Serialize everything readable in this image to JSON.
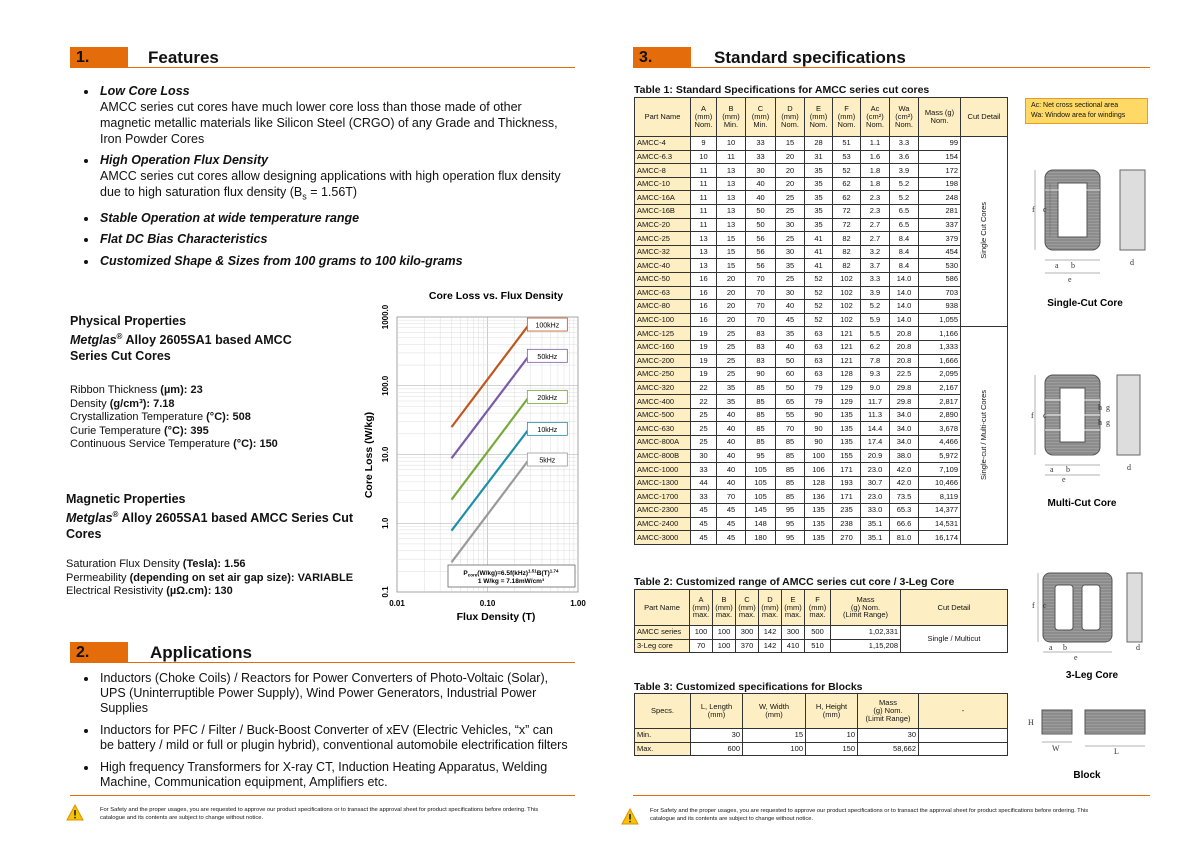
{
  "features": {
    "number": "1.",
    "title": "Features",
    "items": [
      {
        "title": "Low Core Loss",
        "text": "AMCC series cut cores have much lower core loss than those made of other magnetic metallic materials like Silicon Steel (CRGO) of any Grade and Thickness, Iron Powder Cores"
      },
      {
        "title": "High Operation Flux Density",
        "text": "AMCC series cut cores allow designing applications with high operation flux density due to high saturation flux density (B",
        "sub": "s",
        "tail": " = 1.56T)"
      },
      {
        "title": "Stable Operation at wide temperature range"
      },
      {
        "title": "Flat DC Bias Characteristics"
      },
      {
        "title": "Customized Shape & Sizes from 100 grams to 100 kilo-grams"
      }
    ]
  },
  "physical": {
    "title": "Physical Properties",
    "brand": "Metglas",
    "reg": "®",
    "subtitle": " Alloy 2605SA1 based AMCC Series Cut Cores",
    "properties": [
      {
        "name": "Ribbon Thickness ",
        "value": "(µm): 23"
      },
      {
        "name": "Density ",
        "value": "(g/cm³): 7.18"
      },
      {
        "name": "Crystallization Temperature ",
        "value": "(°C): 508"
      },
      {
        "name": "Curie Temperature ",
        "value": "(°C): 395"
      },
      {
        "name": "Continuous Service Temperature ",
        "value": "(°C): 150"
      }
    ]
  },
  "magnetic": {
    "title": "Magnetic Properties",
    "brand": "Metglas",
    "reg": "®",
    "subtitle": " Alloy 2605SA1 based AMCC Series Cut Cores",
    "properties": [
      {
        "name": "Saturation Flux Density ",
        "value": "(Tesla): 1.56"
      },
      {
        "name": "Permeability ",
        "value": "(depending on set air gap size): VARIABLE"
      },
      {
        "name": "Electrical Resistivity ",
        "value": "(µΩ.cm): 130"
      }
    ]
  },
  "chart_data": {
    "type": "line",
    "title": "Core Loss vs. Flux Density",
    "xlabel": "Flux Density (T)",
    "ylabel": "Core Loss (W/kg)",
    "xscale": "log",
    "yscale": "log",
    "grid": true,
    "xlim": [
      0.01,
      1
    ],
    "xticks": [
      0.01,
      {
        "value": 0.1,
        "label": "0.10"
      },
      {
        "value": 1,
        "label": "1.00"
      }
    ],
    "ylim": [
      0.1,
      1000
    ],
    "yticks": [
      0.1,
      {
        "value": 1,
        "label": "1.0"
      },
      {
        "value": 10,
        "label": "10.0"
      },
      {
        "value": 100,
        "label": "100.0"
      },
      {
        "value": 1000,
        "label": "1000.0"
      }
    ],
    "x": [
      0.04,
      0.29
    ],
    "series": [
      {
        "name": "100kHz",
        "color": "#c0561e",
        "values": [
          25,
          790
        ]
      },
      {
        "name": "50kHz",
        "color": "#7d5ba6",
        "values": [
          8.8,
          277
        ]
      },
      {
        "name": "20kHz",
        "color": "#77aa3a",
        "values": [
          2.2,
          70
        ]
      },
      {
        "name": "10kHz",
        "color": "#1f8fa8",
        "values": [
          0.78,
          24
        ]
      },
      {
        "name": "5kHz",
        "color": "#9a9a9a",
        "values": [
          0.27,
          8.6
        ]
      }
    ],
    "annotation": {
      "symbol": "P",
      "sub": "core",
      "expr": "(W/kg)=6.5f(kHz)",
      "exp1": "1.51",
      "base": "B(T)",
      "exp2": "1.74",
      "conversion": "1 W/kg = 7.18mW/cm³"
    }
  },
  "applications": {
    "number": "2.",
    "title": "Applications",
    "items": [
      "Inductors (Choke Coils) / Reactors for Power Converters of Photo-Voltaic (Solar), UPS (Uninterruptible Power Supply), Wind Power Generators, Industrial Power Supplies",
      "Inductors for PFC / Filter / Buck-Boost Converter of xEV (Electric Vehicles, “x” can be battery / mild or full or plugin hybrid), conventional automobile electrification filters",
      "High frequency Transformers for X-ray CT, Induction Heating Apparatus, Welding Machine, Communication equipment, Amplifiers etc."
    ]
  },
  "footer": "For Safety and the proper usages, you are requested to approve our product specifications or to transact the approval sheet for product specifications before ordering. This catalogue and its contents are subject to change without notice.",
  "specs": {
    "number": "3.",
    "title": "Standard specifications",
    "note": [
      "Ac: Net cross sectional area",
      "Wa: Window area for windings"
    ],
    "table1": {
      "title": "Table 1: Standard Specifications for AMCC series cut cores",
      "header": [
        [
          "Part Name"
        ],
        [
          "A",
          "(mm)",
          "Nom."
        ],
        [
          "B",
          "(mm)",
          "Min."
        ],
        [
          "C",
          "(mm)",
          "Min."
        ],
        [
          "D",
          "(mm)",
          "Nom."
        ],
        [
          "E",
          "(mm)",
          "Nom."
        ],
        [
          "F",
          "(mm)",
          "Nom."
        ],
        [
          "Ac",
          "(cm²)",
          "Nom."
        ],
        [
          "Wa",
          "(cm²)",
          "Nom."
        ],
        [
          "Mass (g)",
          "Nom."
        ],
        [
          "Cut Detail"
        ]
      ],
      "groups": [
        {
          "label": "Single Cut Cores",
          "rows": [
            [
              "AMCC-4",
              "9",
              "10",
              "33",
              "15",
              "28",
              "51",
              "1.1",
              "3.3",
              "99"
            ],
            [
              "AMCC-6.3",
              "10",
              "11",
              "33",
              "20",
              "31",
              "53",
              "1.6",
              "3.6",
              "154"
            ],
            [
              "AMCC-8",
              "11",
              "13",
              "30",
              "20",
              "35",
              "52",
              "1.8",
              "3.9",
              "172"
            ],
            [
              "AMCC-10",
              "11",
              "13",
              "40",
              "20",
              "35",
              "62",
              "1.8",
              "5.2",
              "198"
            ],
            [
              "AMCC-16A",
              "11",
              "13",
              "40",
              "25",
              "35",
              "62",
              "2.3",
              "5.2",
              "248"
            ],
            [
              "AMCC-16B",
              "11",
              "13",
              "50",
              "25",
              "35",
              "72",
              "2.3",
              "6.5",
              "281"
            ],
            [
              "AMCC-20",
              "11",
              "13",
              "50",
              "30",
              "35",
              "72",
              "2.7",
              "6.5",
              "337"
            ],
            [
              "AMCC-25",
              "13",
              "15",
              "56",
              "25",
              "41",
              "82",
              "2.7",
              "8.4",
              "379"
            ],
            [
              "AMCC-32",
              "13",
              "15",
              "56",
              "30",
              "41",
              "82",
              "3.2",
              "8.4",
              "454"
            ],
            [
              "AMCC-40",
              "13",
              "15",
              "56",
              "35",
              "41",
              "82",
              "3.7",
              "8.4",
              "530"
            ],
            [
              "AMCC-50",
              "16",
              "20",
              "70",
              "25",
              "52",
              "102",
              "3.3",
              "14.0",
              "586"
            ],
            [
              "AMCC-63",
              "16",
              "20",
              "70",
              "30",
              "52",
              "102",
              "3.9",
              "14.0",
              "703"
            ],
            [
              "AMCC-80",
              "16",
              "20",
              "70",
              "40",
              "52",
              "102",
              "5.2",
              "14.0",
              "938"
            ],
            [
              "AMCC-100",
              "16",
              "20",
              "70",
              "45",
              "52",
              "102",
              "5.9",
              "14.0",
              "1,055"
            ]
          ]
        },
        {
          "label": "Single-cut / Multi-cut Cores",
          "rows": [
            [
              "AMCC-125",
              "19",
              "25",
              "83",
              "35",
              "63",
              "121",
              "5.5",
              "20.8",
              "1,166"
            ],
            [
              "AMCC-160",
              "19",
              "25",
              "83",
              "40",
              "63",
              "121",
              "6.2",
              "20.8",
              "1,333"
            ],
            [
              "AMCC-200",
              "19",
              "25",
              "83",
              "50",
              "63",
              "121",
              "7.8",
              "20.8",
              "1,666"
            ],
            [
              "AMCC-250",
              "19",
              "25",
              "90",
              "60",
              "63",
              "128",
              "9.3",
              "22.5",
              "2,095"
            ],
            [
              "AMCC-320",
              "22",
              "35",
              "85",
              "50",
              "79",
              "129",
              "9.0",
              "29.8",
              "2,167"
            ],
            [
              "AMCC-400",
              "22",
              "35",
              "85",
              "65",
              "79",
              "129",
              "11.7",
              "29.8",
              "2,817"
            ],
            [
              "AMCC-500",
              "25",
              "40",
              "85",
              "55",
              "90",
              "135",
              "11.3",
              "34.0",
              "2,890"
            ],
            [
              "AMCC-630",
              "25",
              "40",
              "85",
              "70",
              "90",
              "135",
              "14.4",
              "34.0",
              "3,678"
            ],
            [
              "AMCC-800A",
              "25",
              "40",
              "85",
              "85",
              "90",
              "135",
              "17.4",
              "34.0",
              "4,466"
            ],
            [
              "AMCC-800B",
              "30",
              "40",
              "95",
              "85",
              "100",
              "155",
              "20.9",
              "38.0",
              "5,972"
            ],
            [
              "AMCC-1000",
              "33",
              "40",
              "105",
              "85",
              "106",
              "171",
              "23.0",
              "42.0",
              "7,109"
            ],
            [
              "AMCC-1300",
              "44",
              "40",
              "105",
              "85",
              "128",
              "193",
              "30.7",
              "42.0",
              "10,466"
            ],
            [
              "AMCC-1700",
              "33",
              "70",
              "105",
              "85",
              "136",
              "171",
              "23.0",
              "73.5",
              "8,119"
            ],
            [
              "AMCC-2300",
              "45",
              "45",
              "145",
              "95",
              "135",
              "235",
              "33.0",
              "65.3",
              "14,377"
            ],
            [
              "AMCC-2400",
              "45",
              "45",
              "148",
              "95",
              "135",
              "238",
              "35.1",
              "66.6",
              "14,531"
            ],
            [
              "AMCC-3000",
              "45",
              "45",
              "180",
              "95",
              "135",
              "270",
              "35.1",
              "81.0",
              "16,174"
            ]
          ]
        }
      ]
    },
    "table2": {
      "title": "Table 2: Customized range of AMCC series cut core / 3-Leg Core",
      "header": [
        [
          "Part Name"
        ],
        [
          "A",
          "(mm)",
          "max."
        ],
        [
          "B",
          "(mm)",
          "max."
        ],
        [
          "C",
          "(mm)",
          "max."
        ],
        [
          "D",
          "(mm)",
          "max."
        ],
        [
          "E",
          "(mm)",
          "max."
        ],
        [
          "F",
          "(mm)",
          "max."
        ],
        [
          "Mass",
          "(g) Nom.",
          "(Limit Range)"
        ],
        [
          "Cut Detail"
        ]
      ],
      "cut_detail": "Single / Multicut",
      "rows": [
        [
          "AMCC series",
          "100",
          "100",
          "300",
          "142",
          "300",
          "500",
          "1,02,331"
        ],
        [
          "3-Leg core",
          "70",
          "100",
          "370",
          "142",
          "410",
          "510",
          "1,15,208"
        ]
      ]
    },
    "table3": {
      "title": "Table 3: Customized specifications for Blocks",
      "header": [
        [
          "Specs."
        ],
        [
          "L, Length",
          "(mm)"
        ],
        [
          "W, Width",
          "(mm)"
        ],
        [
          "H, Height",
          "(mm)"
        ],
        [
          "Mass",
          "(g) Nom.",
          "(Limit Range)"
        ],
        [
          "-"
        ]
      ],
      "rows": [
        [
          "Min.",
          "30",
          "15",
          "10",
          "30"
        ],
        [
          "Max.",
          "600",
          "100",
          "150",
          "58,662"
        ]
      ]
    },
    "figures": [
      {
        "caption": "Single-Cut Core",
        "labels": [
          "f",
          "c",
          "a",
          "b",
          "e",
          "d"
        ]
      },
      {
        "caption": "Multi-Cut Core",
        "labels": [
          "f",
          "c",
          "h",
          "g",
          "h",
          "g",
          "a",
          "b",
          "e",
          "d"
        ]
      },
      {
        "caption": "3-Leg Core",
        "labels": [
          "f",
          "c",
          "a",
          "b",
          "e",
          "d"
        ]
      },
      {
        "caption": "Block",
        "labels": [
          "H",
          "W",
          "L"
        ]
      }
    ]
  }
}
